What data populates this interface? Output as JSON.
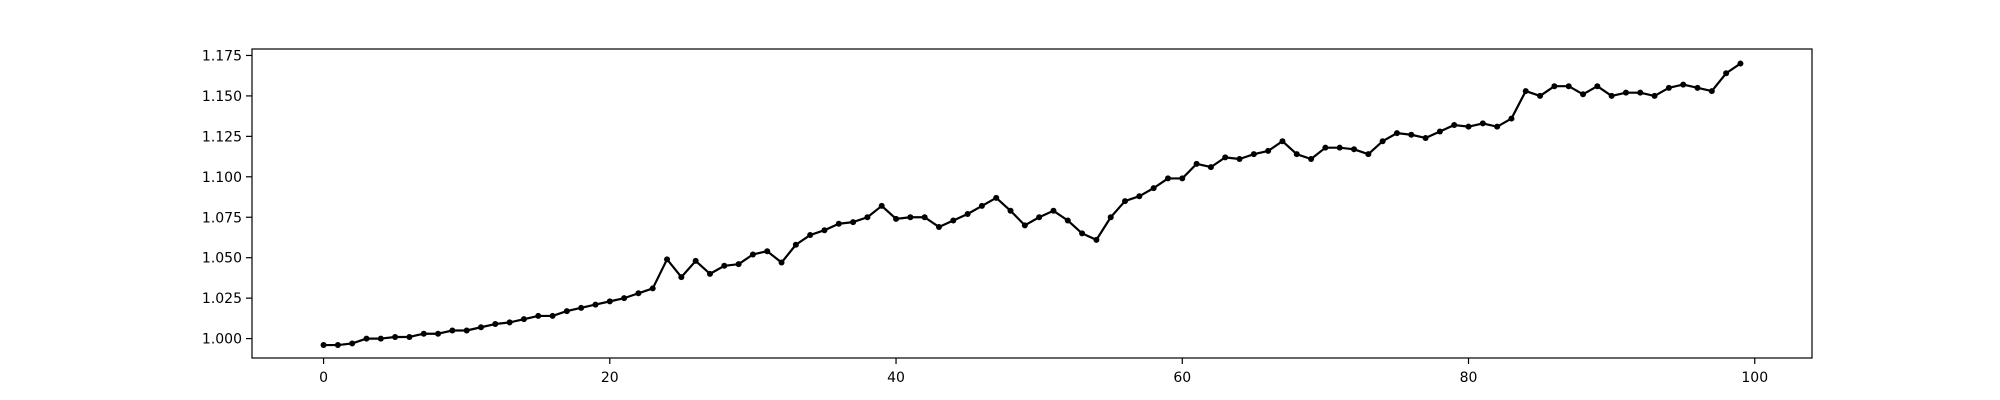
{
  "chart_data": {
    "type": "line",
    "title": "",
    "xlabel": "",
    "ylabel": "",
    "xlim": [
      -5,
      104
    ],
    "ylim": [
      0.988,
      1.179
    ],
    "grid": false,
    "legend": "none",
    "x_ticks": [
      {
        "value": 0,
        "label": "0"
      },
      {
        "value": 20,
        "label": "20"
      },
      {
        "value": 40,
        "label": "40"
      },
      {
        "value": 60,
        "label": "60"
      },
      {
        "value": 80,
        "label": "80"
      },
      {
        "value": 100,
        "label": "100"
      }
    ],
    "y_ticks": [
      {
        "value": 1.0,
        "label": "1.000"
      },
      {
        "value": 1.025,
        "label": "1.025"
      },
      {
        "value": 1.05,
        "label": "1.050"
      },
      {
        "value": 1.075,
        "label": "1.075"
      },
      {
        "value": 1.1,
        "label": "1.100"
      },
      {
        "value": 1.125,
        "label": "1.125"
      },
      {
        "value": 1.15,
        "label": "1.150"
      },
      {
        "value": 1.175,
        "label": "1.175"
      }
    ],
    "series": [
      {
        "color": "#000000",
        "marker": "circle",
        "x": [
          0,
          1,
          2,
          3,
          4,
          5,
          6,
          7,
          8,
          9,
          10,
          11,
          12,
          13,
          14,
          15,
          16,
          17,
          18,
          19,
          20,
          21,
          22,
          23,
          24,
          25,
          26,
          27,
          28,
          29,
          30,
          31,
          32,
          33,
          34,
          35,
          36,
          37,
          38,
          39,
          40,
          41,
          42,
          43,
          44,
          45,
          46,
          47,
          48,
          49,
          50,
          51,
          52,
          53,
          54,
          55,
          56,
          57,
          58,
          59,
          60,
          61,
          62,
          63,
          64,
          65,
          66,
          67,
          68,
          69,
          70,
          71,
          72,
          73,
          74,
          75,
          76,
          77,
          78,
          79,
          80,
          81,
          82,
          83,
          84,
          85,
          86,
          87,
          88,
          89,
          90,
          91,
          92,
          93,
          94,
          95,
          96,
          97,
          98,
          99
        ],
        "y": [
          0.996,
          0.996,
          0.997,
          1.0,
          1.0,
          1.001,
          1.001,
          1.003,
          1.003,
          1.005,
          1.005,
          1.007,
          1.009,
          1.01,
          1.012,
          1.014,
          1.014,
          1.017,
          1.019,
          1.021,
          1.023,
          1.025,
          1.028,
          1.031,
          1.049,
          1.038,
          1.048,
          1.04,
          1.045,
          1.046,
          1.052,
          1.054,
          1.047,
          1.058,
          1.064,
          1.067,
          1.071,
          1.072,
          1.075,
          1.082,
          1.074,
          1.075,
          1.075,
          1.069,
          1.073,
          1.077,
          1.082,
          1.087,
          1.079,
          1.07,
          1.075,
          1.079,
          1.073,
          1.065,
          1.061,
          1.075,
          1.085,
          1.088,
          1.093,
          1.099,
          1.099,
          1.108,
          1.106,
          1.112,
          1.111,
          1.114,
          1.116,
          1.122,
          1.114,
          1.111,
          1.118,
          1.118,
          1.117,
          1.114,
          1.122,
          1.127,
          1.126,
          1.124,
          1.128,
          1.132,
          1.131,
          1.133,
          1.131,
          1.136,
          1.153,
          1.15,
          1.156,
          1.156,
          1.151,
          1.156,
          1.15,
          1.152,
          1.152,
          1.15,
          1.155,
          1.157,
          1.155,
          1.153,
          1.164,
          1.17
        ]
      }
    ]
  }
}
